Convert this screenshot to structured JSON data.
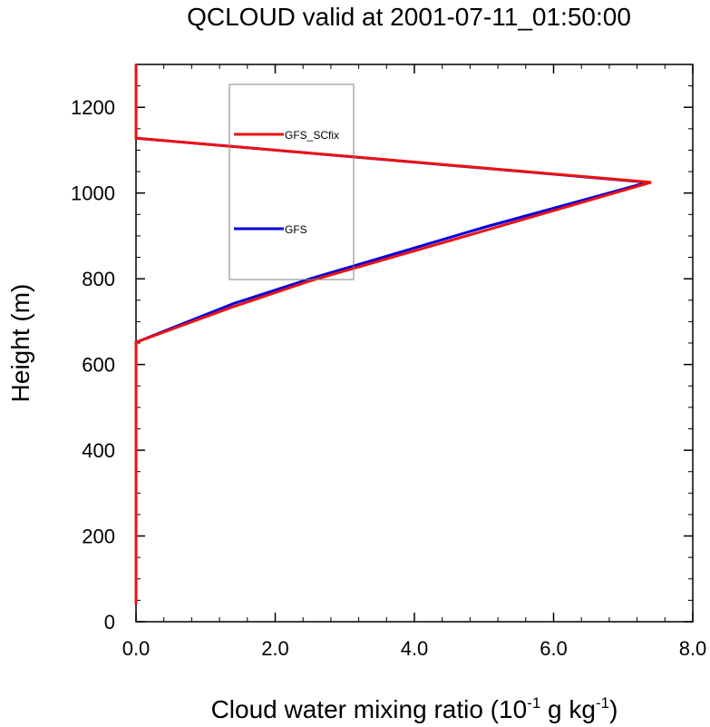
{
  "chart_data": {
    "type": "line",
    "title": "QCLOUD valid at 2001-07-11_01:50:00",
    "xlabel": {
      "base": "Cloud water mixing ratio (10",
      "sup1": "-1",
      "mid": " g kg",
      "sup2": "-1",
      "end": ")"
    },
    "ylabel": "Height (m)",
    "xlim": [
      0,
      8
    ],
    "ylim": [
      0,
      1300
    ],
    "xticks": [
      {
        "value": 0,
        "label": "0.0"
      },
      {
        "value": 2,
        "label": "2.0"
      },
      {
        "value": 4,
        "label": "4.0"
      },
      {
        "value": 6,
        "label": "6.0"
      },
      {
        "value": 8,
        "label": "8.0"
      }
    ],
    "yticks": [
      {
        "value": 0,
        "label": "0"
      },
      {
        "value": 200,
        "label": "200"
      },
      {
        "value": 400,
        "label": "400"
      },
      {
        "value": 600,
        "label": "600"
      },
      {
        "value": 800,
        "label": "800"
      },
      {
        "value": 1000,
        "label": "1000"
      },
      {
        "value": 1200,
        "label": "1200"
      }
    ],
    "grid": false,
    "legend_position": "top-center",
    "series": [
      {
        "name": "GFS",
        "color": "#0000dd",
        "points": [
          [
            0,
            40
          ],
          [
            0,
            652
          ],
          [
            1.4,
            742
          ],
          [
            2.5,
            800
          ],
          [
            5.0,
            920
          ],
          [
            7.35,
            1025
          ],
          [
            0,
            1128
          ],
          [
            0,
            1300
          ]
        ]
      },
      {
        "name": "GFS_SCfix",
        "color": "#ee1111",
        "points": [
          [
            0,
            40
          ],
          [
            0,
            652
          ],
          [
            1.4,
            735
          ],
          [
            2.5,
            795
          ],
          [
            5.0,
            912
          ],
          [
            7.4,
            1025
          ],
          [
            0,
            1128
          ],
          [
            0,
            1300
          ]
        ]
      }
    ]
  }
}
